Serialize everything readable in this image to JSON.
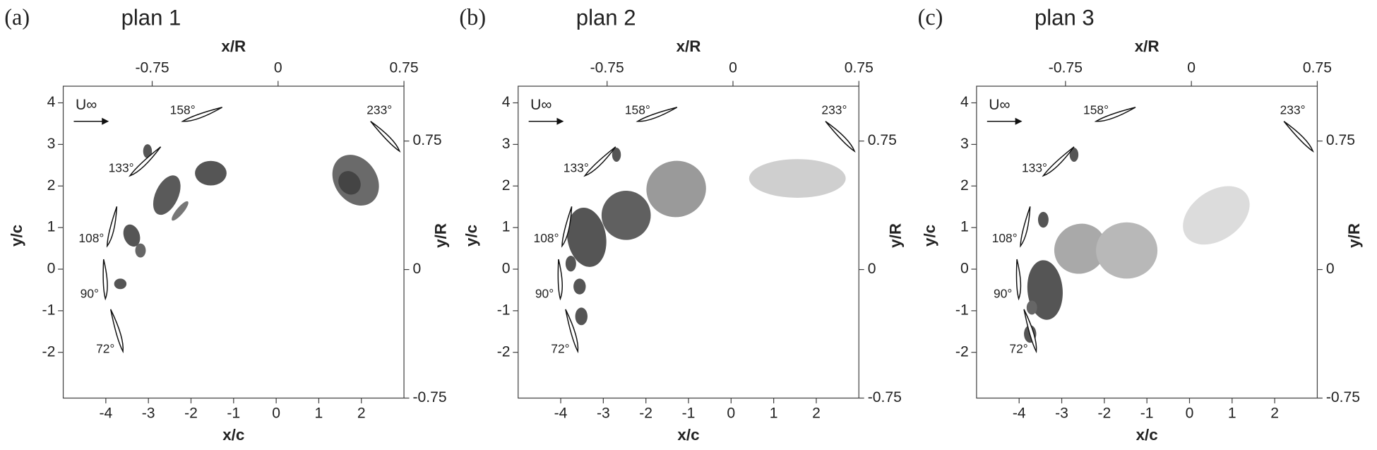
{
  "panels": [
    {
      "tag": "(a)",
      "title": "plan 1",
      "xlabel": "x/c",
      "ylabel": "y/c",
      "x2label": "x/R",
      "y2label": "y/R",
      "xlim": [
        -5,
        3
      ],
      "xticks": [
        -4,
        -3,
        -2,
        -1,
        0,
        1,
        2
      ],
      "ylim": [
        -3.1,
        4.4
      ],
      "yticks": [
        -2,
        -1,
        0,
        1,
        2,
        3,
        4
      ],
      "x2lim": [
        -1.28,
        0.75
      ],
      "x2ticks": [
        -0.75,
        0,
        0.75
      ],
      "y2lim": [
        -0.75,
        1.07
      ],
      "y2ticks": [
        -0.75,
        0,
        0.75
      ],
      "freestream": "U∞",
      "angles": [
        "158°",
        "133°",
        "108°",
        "90°",
        "72°",
        "233°"
      ]
    },
    {
      "tag": "(b)",
      "title": "plan 2",
      "xlabel": "x/c",
      "ylabel": "y/c",
      "x2label": "x/R",
      "y2label": "y/R",
      "xlim": [
        -5,
        3
      ],
      "xticks": [
        -4,
        -3,
        -2,
        -1,
        0,
        1,
        2
      ],
      "ylim": [
        -3.1,
        4.4
      ],
      "yticks": [
        -2,
        -1,
        0,
        1,
        2,
        3,
        4
      ],
      "x2lim": [
        -1.28,
        0.75
      ],
      "x2ticks": [
        -0.75,
        0,
        0.75
      ],
      "y2lim": [
        -0.75,
        1.07
      ],
      "y2ticks": [
        -0.75,
        0,
        0.75
      ],
      "freestream": "U∞",
      "angles": [
        "158°",
        "133°",
        "108°",
        "90°",
        "72°",
        "233°"
      ]
    },
    {
      "tag": "(c)",
      "title": "plan 3",
      "xlabel": "x/c",
      "ylabel": "y/c",
      "x2label": "x/R",
      "y2label": "y/R",
      "xlim": [
        -5,
        3
      ],
      "xticks": [
        -4,
        -3,
        -2,
        -1,
        0,
        1,
        2
      ],
      "ylim": [
        -3.1,
        4.4
      ],
      "yticks": [
        -2,
        -1,
        0,
        1,
        2,
        3,
        4
      ],
      "x2lim": [
        -1.28,
        0.75
      ],
      "x2ticks": [
        -0.75,
        0,
        0.75
      ],
      "y2lim": [
        -0.75,
        1.07
      ],
      "y2ticks": [
        -0.75,
        0,
        0.75
      ],
      "freestream": "U∞",
      "angles": [
        "158°",
        "133°",
        "108°",
        "90°",
        "72°",
        "233°"
      ]
    }
  ]
}
